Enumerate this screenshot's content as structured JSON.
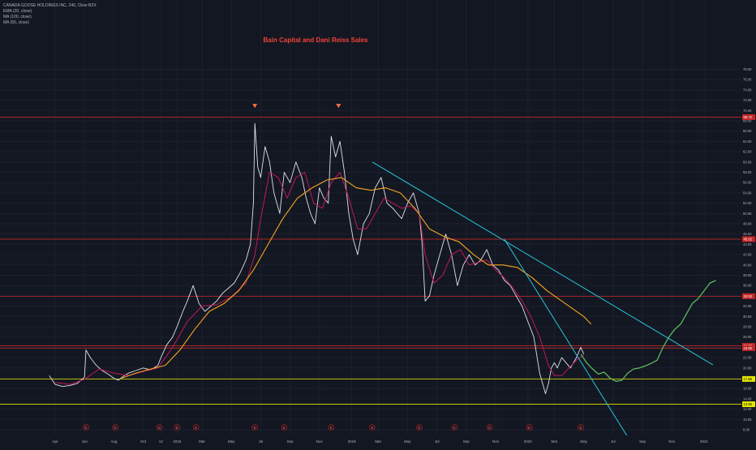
{
  "legend": [
    "CANADA GOOSE HOLDINGS INC, 240, Cboe BZX",
    "EMA (20, close)",
    "MA (100, close)",
    "MA (50, close)"
  ],
  "annotation": "Bain Capital and Dani Reiss Sales",
  "colors": {
    "background": "#131722",
    "price": "#dfe2ea",
    "ema20": "#c2185b",
    "ma100": "#f6a623",
    "trend": "#26c6da",
    "projection": "#5cb85c",
    "resistance": "#c62828",
    "support": "#e6e600",
    "annotation": "#f44336"
  },
  "chart_data": {
    "type": "line",
    "ylim": [
      8,
      78
    ],
    "y_ticks": [
      8,
      10,
      12,
      14,
      16,
      18,
      20,
      22,
      24,
      26,
      28,
      30,
      32,
      34,
      36,
      38,
      40,
      42,
      44,
      46,
      48,
      50,
      52,
      54,
      56,
      58,
      60,
      62,
      64,
      66,
      68,
      70,
      72,
      74,
      76,
      78
    ],
    "x_ticks": [
      "Apr",
      "Jun",
      "Aug",
      "Oct",
      "12",
      "2018",
      "Mar",
      "May",
      "Jul",
      "Sep",
      "Nov",
      "2019",
      "Mar",
      "May",
      "Jul",
      "Sep",
      "Nov",
      "2020",
      "Mar",
      "May",
      "Jul",
      "Sep",
      "Nov",
      "2021"
    ],
    "x_tick_pos": [
      0.0,
      2.0,
      4.0,
      6.0,
      7.2,
      8.3,
      10.0,
      12.0,
      14.0,
      16.0,
      18.0,
      20.2,
      22.0,
      24.0,
      26.0,
      28.0,
      30.0,
      32.2,
      34.0,
      36.0,
      38.0,
      40.0,
      42.0,
      44.2
    ],
    "event_markers": [
      2.1,
      4.1,
      7.1,
      8.3,
      9.6,
      13.6,
      15.6,
      18.8,
      21.6,
      24.8,
      27.2,
      29.6,
      32.3,
      35.8
    ],
    "event_label": "E",
    "horizontal_levels": [
      {
        "value": 68.72,
        "label": "68.72",
        "kind": "resistance"
      },
      {
        "value": 45.02,
        "label": "45.02",
        "kind": "resistance"
      },
      {
        "value": 33.93,
        "label": "33.93",
        "kind": "resistance"
      },
      {
        "value": 24.29,
        "label": "24.29",
        "kind": "resistance"
      },
      {
        "value": 23.85,
        "label": "23.85",
        "kind": "resistance"
      },
      {
        "value": 17.86,
        "label": "17.86",
        "kind": "support"
      },
      {
        "value": 12.95,
        "label": "12.95",
        "kind": "support"
      }
    ],
    "trendlines": [
      {
        "name": "",
        "x": [
          21.6,
          44.8
        ],
        "y": [
          60,
          20.6
        ]
      },
      {
        "name": "",
        "x": [
          30.6,
          40.0
        ],
        "y": [
          45,
          2
        ]
      }
    ],
    "series": [
      {
        "name": "",
        "key": "price",
        "x": [
          -0.4,
          0.0,
          0.5,
          1.0,
          1.5,
          2.0,
          2.1,
          2.4,
          2.8,
          3.2,
          3.6,
          4.0,
          4.3,
          4.7,
          5.0,
          5.5,
          6.0,
          6.5,
          7.0,
          7.2,
          7.6,
          8.0,
          8.3,
          8.7,
          9.0,
          9.4,
          9.8,
          10.2,
          10.6,
          11.0,
          11.4,
          11.8,
          12.2,
          12.6,
          13.0,
          13.3,
          13.5,
          13.6,
          13.8,
          14.0,
          14.3,
          14.6,
          14.9,
          15.3,
          15.6,
          16.0,
          16.4,
          16.8,
          17.1,
          17.4,
          17.7,
          18.0,
          18.3,
          18.6,
          18.8,
          19.1,
          19.4,
          19.7,
          20.0,
          20.3,
          20.6,
          21.0,
          21.4,
          21.8,
          22.2,
          22.6,
          23.0,
          23.3,
          23.6,
          24.0,
          24.4,
          24.8,
          25.0,
          25.2,
          25.5,
          25.8,
          26.2,
          26.6,
          27.0,
          27.4,
          27.8,
          28.2,
          28.6,
          29.0,
          29.4,
          29.8,
          30.2,
          30.6,
          31.0,
          31.4,
          31.8,
          32.2,
          32.6,
          33.0,
          33.4,
          33.6,
          33.8,
          34.0,
          34.2,
          34.5,
          34.8,
          35.1,
          35.5,
          35.8,
          36.0
        ],
        "y": [
          18.5,
          16.8,
          16.4,
          16.6,
          17.0,
          18.2,
          23.5,
          22.0,
          20.5,
          19.5,
          18.8,
          18.0,
          17.6,
          18.5,
          19.0,
          19.5,
          20.0,
          19.6,
          20.5,
          22.0,
          24.5,
          26.0,
          28.0,
          31.0,
          33.0,
          36.0,
          32.5,
          31.0,
          32.0,
          33.0,
          34.5,
          35.5,
          36.5,
          38.5,
          41.0,
          44.0,
          52.0,
          67.5,
          59.0,
          57.0,
          63.0,
          60.0,
          54.0,
          50.0,
          58.0,
          56.0,
          60.0,
          57.0,
          53.0,
          50.0,
          48.0,
          55.0,
          53.0,
          52.0,
          65.0,
          61.0,
          64.0,
          58.0,
          50.0,
          45.0,
          42.0,
          48.0,
          50.0,
          55.0,
          57.0,
          52.0,
          51.0,
          50.0,
          49.0,
          52.0,
          54.0,
          50.0,
          44.0,
          33.0,
          34.0,
          38.0,
          42.0,
          46.0,
          42.0,
          36.0,
          40.0,
          42.0,
          40.0,
          41.0,
          43.0,
          40.0,
          39.0,
          37.0,
          36.0,
          34.0,
          32.0,
          29.0,
          26.0,
          19.0,
          15.0,
          17.0,
          20.0,
          21.0,
          20.0,
          22.0,
          21.0,
          20.0,
          22.0,
          24.0,
          22.7
        ]
      },
      {
        "name": "",
        "key": "ema20",
        "x": [
          0.0,
          1.0,
          2.0,
          3.0,
          4.0,
          5.0,
          6.0,
          7.0,
          8.0,
          9.0,
          10.0,
          11.0,
          12.0,
          13.0,
          13.6,
          14.0,
          14.6,
          15.2,
          15.8,
          16.4,
          17.0,
          17.6,
          18.2,
          18.8,
          19.4,
          20.0,
          20.6,
          21.2,
          21.8,
          22.4,
          23.0,
          23.6,
          24.2,
          24.8,
          25.2,
          25.8,
          26.4,
          27.0,
          27.6,
          28.2,
          28.8,
          29.4,
          30.0,
          30.6,
          31.2,
          31.8,
          32.4,
          33.0,
          33.6,
          34.0,
          34.5,
          35.0,
          35.5,
          36.0
        ],
        "y": [
          17.2,
          16.8,
          17.8,
          19.8,
          19.0,
          18.5,
          19.3,
          20.0,
          24.0,
          29.0,
          32.0,
          32.3,
          33.8,
          36.5,
          42.0,
          49.0,
          58.0,
          57.0,
          53.0,
          57.0,
          58.0,
          52.0,
          51.0,
          56.0,
          58.0,
          53.0,
          47.0,
          47.0,
          50.0,
          53.0,
          52.0,
          51.0,
          51.5,
          50.0,
          42.0,
          36.5,
          38.0,
          42.0,
          43.0,
          40.0,
          40.5,
          41.0,
          39.0,
          37.5,
          35.5,
          33.0,
          30.0,
          26.0,
          20.5,
          18.5,
          18.5,
          20.0,
          21.5,
          22.5
        ]
      },
      {
        "name": "",
        "key": "ma100",
        "x": [
          4.5,
          5.5,
          6.5,
          7.5,
          8.5,
          9.5,
          10.5,
          11.5,
          12.5,
          13.5,
          14.5,
          15.5,
          16.5,
          17.5,
          18.5,
          19.5,
          20.5,
          21.5,
          22.5,
          23.5,
          24.5,
          25.5,
          26.5,
          27.5,
          28.5,
          29.5,
          30.5,
          31.5,
          32.5,
          33.5,
          34.0,
          35.0,
          36.0,
          36.5
        ],
        "y": [
          18.0,
          19.0,
          19.8,
          20.5,
          23.5,
          27.5,
          31.0,
          32.5,
          35.0,
          39.0,
          44.0,
          49.0,
          53.0,
          55.0,
          56.5,
          57.0,
          55.0,
          54.5,
          55.0,
          54.0,
          51.0,
          47.0,
          45.5,
          44.5,
          42.0,
          40.0,
          40.0,
          39.5,
          37.5,
          35.0,
          34.0,
          32.0,
          30.0,
          28.5
        ]
      },
      {
        "name": "",
        "key": "projection",
        "x": [
          35.8,
          36.2,
          36.6,
          37.0,
          37.4,
          37.8,
          38.2,
          38.6,
          39.0,
          39.4,
          39.8,
          40.2,
          40.6,
          41.0,
          41.4,
          41.8,
          42.2,
          42.6,
          43.0,
          43.4,
          43.8,
          44.2,
          44.6,
          45.0
        ],
        "y": [
          22.7,
          21.0,
          19.8,
          18.8,
          19.2,
          18.0,
          17.4,
          17.6,
          19.0,
          19.8,
          20.0,
          20.4,
          20.9,
          21.5,
          24.0,
          26.0,
          27.5,
          28.5,
          30.5,
          32.5,
          33.5,
          35.0,
          36.5,
          37.0
        ]
      }
    ]
  }
}
